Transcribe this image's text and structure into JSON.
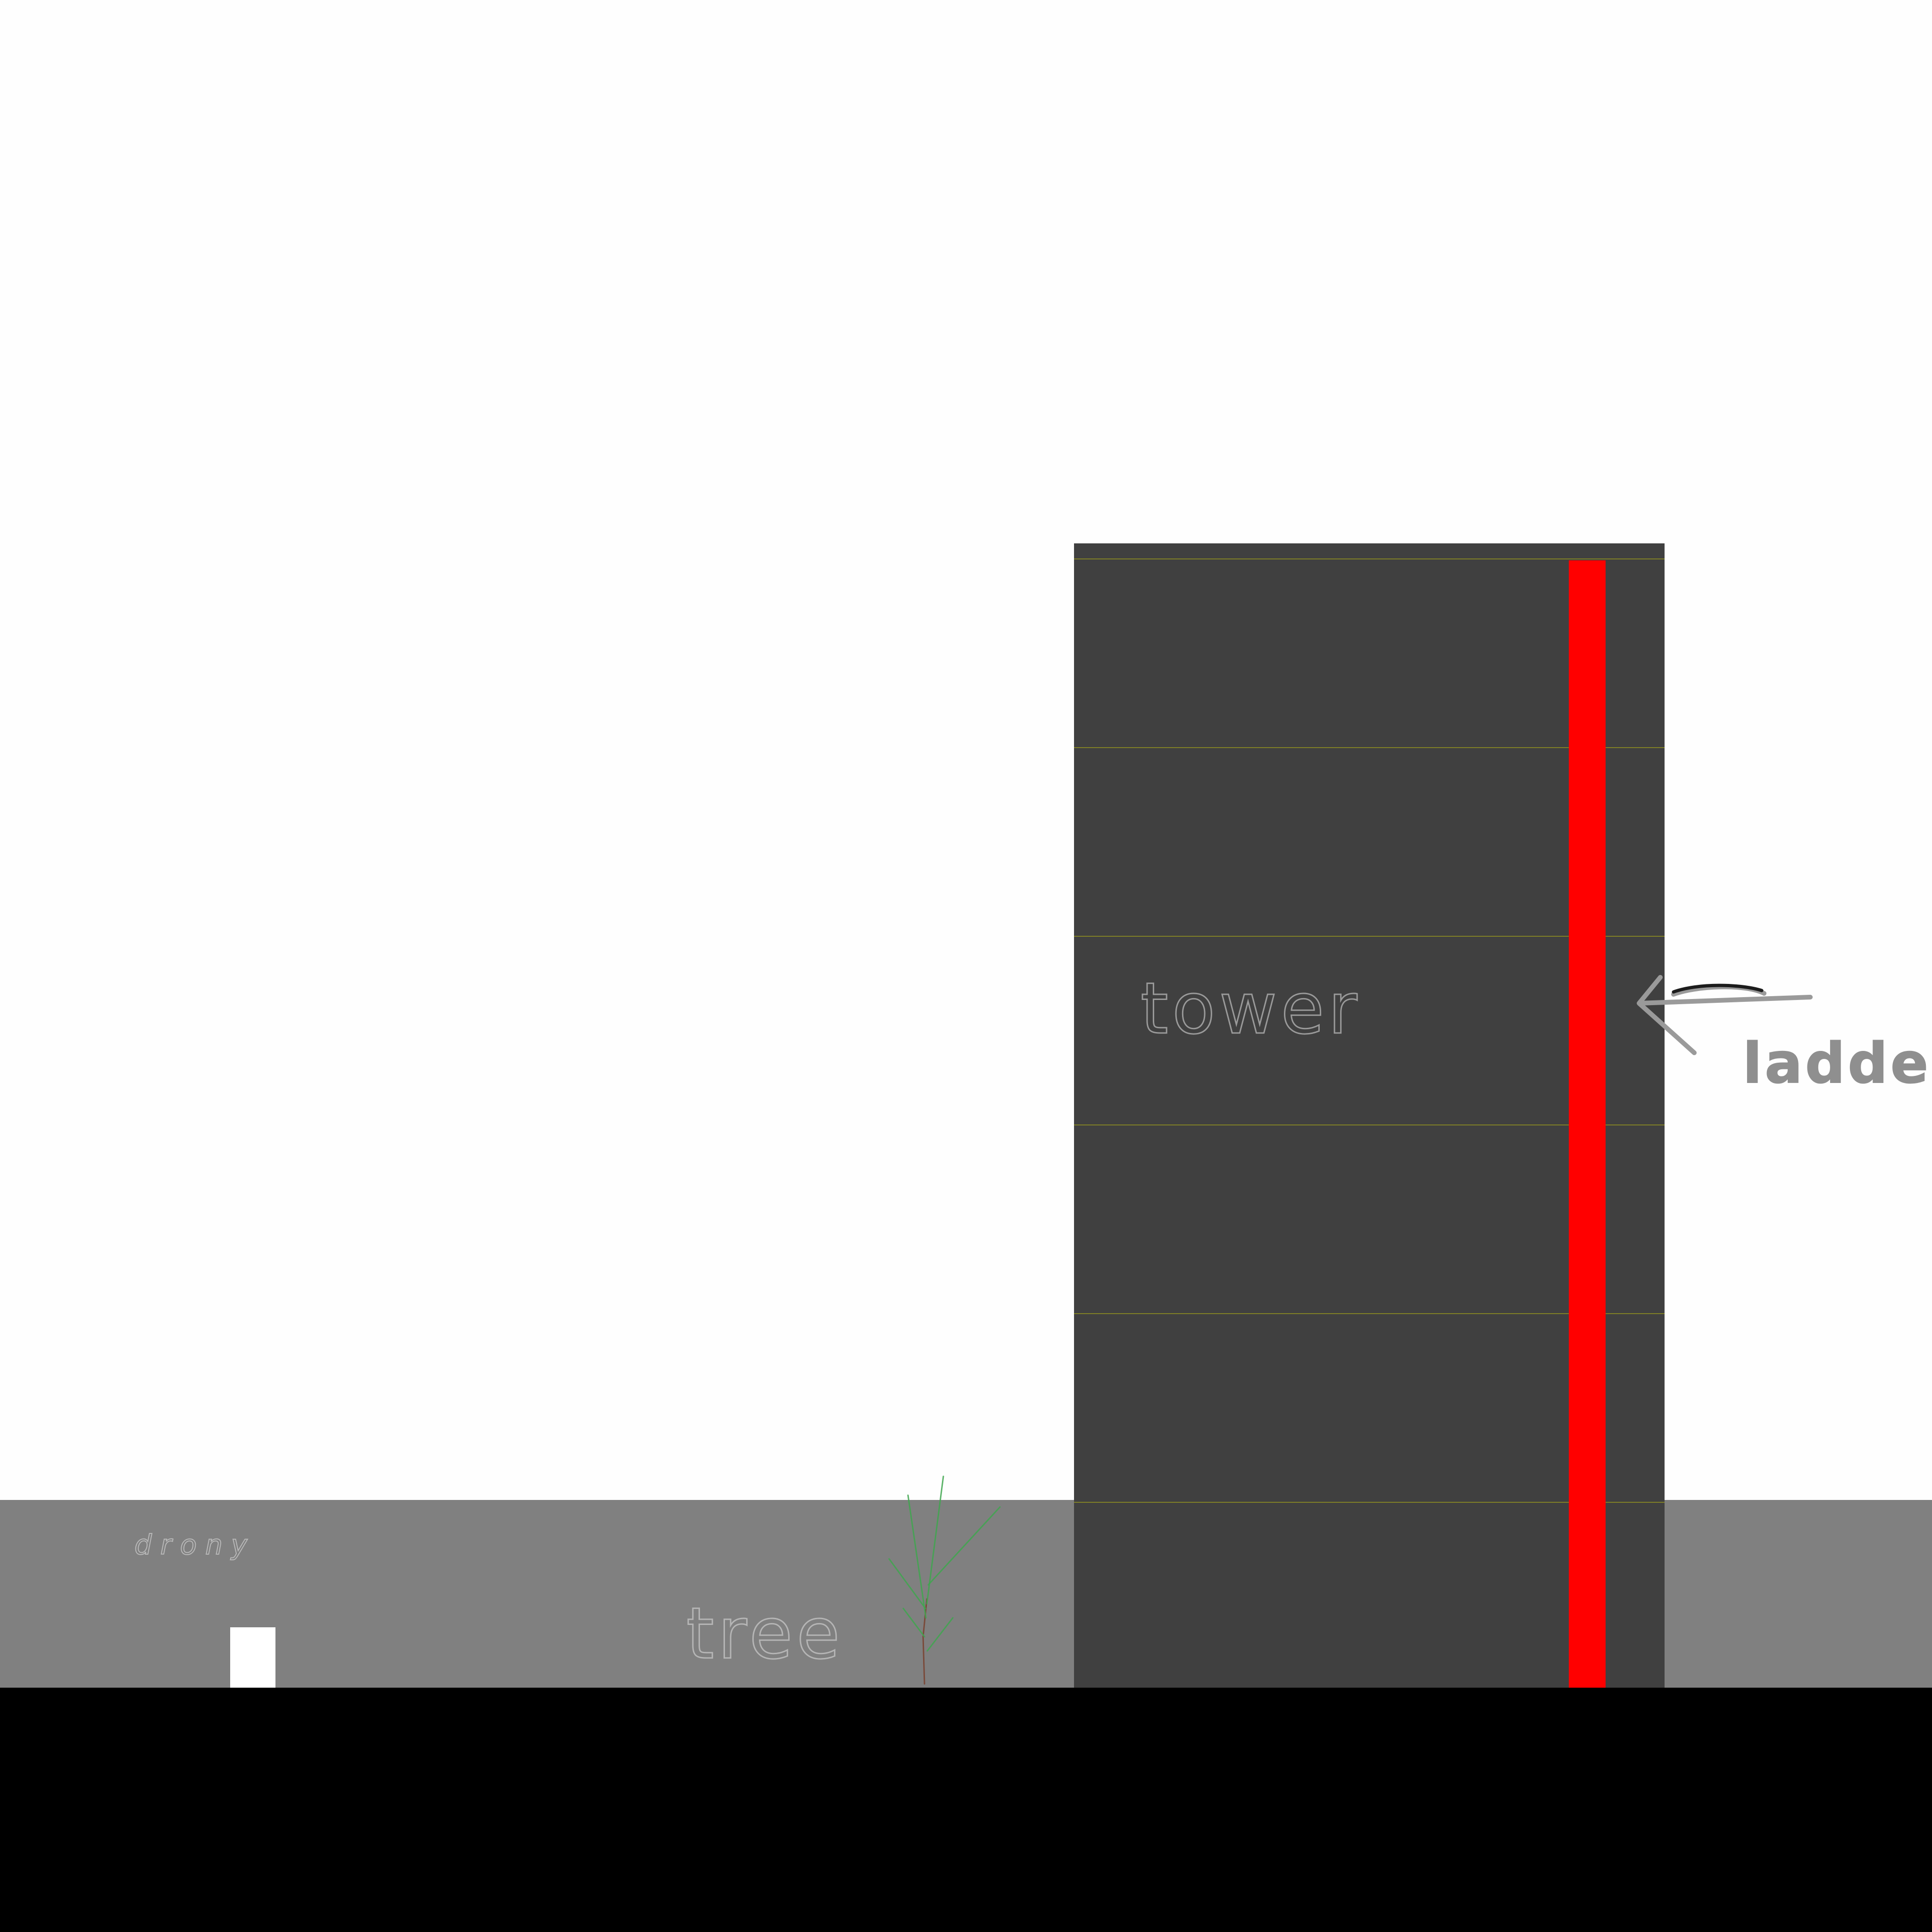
{
  "scene": {
    "colors": {
      "sky": "#fefefe",
      "midground": "#808080",
      "floor": "#000000",
      "tower": "#404040",
      "floor_line": "#8c8c22",
      "ladder": "#ff0000",
      "player": "#ffffff",
      "label_ink": "#9a9a9a",
      "tree_trunk": "#7a4a3a",
      "tree_leaves": "#3fa64f"
    },
    "labels": {
      "player": "drony",
      "tree": "tree",
      "tower": "tower",
      "ladder": "ladder"
    },
    "objects": {
      "tower_floors": 6
    }
  }
}
